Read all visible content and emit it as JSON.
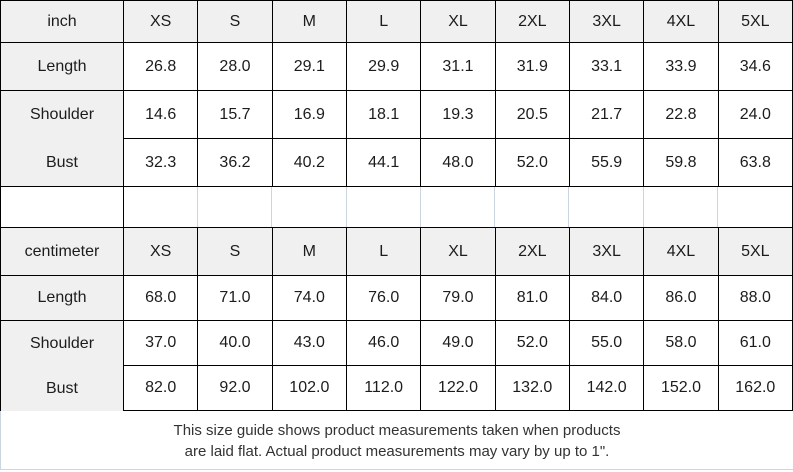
{
  "colors": {
    "header_fill": "#f0f0f0",
    "grid_line": "#000000",
    "light_grid_line": "#ccd6e0",
    "text": "#1c1c1c"
  },
  "tables": [
    {
      "id": "inch",
      "unit_label": "inch",
      "columns": [
        "XS",
        "S",
        "M",
        "L",
        "XL",
        "2XL",
        "3XL",
        "4XL",
        "5XL"
      ],
      "rows": [
        {
          "label": "Length",
          "values": [
            "26.8",
            "28.0",
            "29.1",
            "29.9",
            "31.1",
            "31.9",
            "33.1",
            "33.9",
            "34.6"
          ]
        },
        {
          "label": "Shoulder",
          "values": [
            "14.6",
            "15.7",
            "16.9",
            "18.1",
            "19.3",
            "20.5",
            "21.7",
            "22.8",
            "24.0"
          ]
        },
        {
          "label": "Bust",
          "values": [
            "32.3",
            "36.2",
            "40.2",
            "44.1",
            "48.0",
            "52.0",
            "55.9",
            "59.8",
            "63.8"
          ]
        }
      ]
    },
    {
      "id": "cm",
      "unit_label": "centimeter",
      "columns": [
        "XS",
        "S",
        "M",
        "L",
        "XL",
        "2XL",
        "3XL",
        "4XL",
        "5XL"
      ],
      "rows": [
        {
          "label": "Length",
          "values": [
            "68.0",
            "71.0",
            "74.0",
            "76.0",
            "79.0",
            "81.0",
            "84.0",
            "86.0",
            "88.0"
          ]
        },
        {
          "label": "Shoulder",
          "values": [
            "37.0",
            "40.0",
            "43.0",
            "46.0",
            "49.0",
            "52.0",
            "55.0",
            "58.0",
            "61.0"
          ]
        },
        {
          "label": "Bust",
          "values": [
            "82.0",
            "92.0",
            "102.0",
            "112.0",
            "122.0",
            "132.0",
            "142.0",
            "152.0",
            "162.0"
          ]
        }
      ]
    }
  ],
  "footer": {
    "line1": "This size guide shows product measurements taken when products",
    "line2": "are laid flat. Actual product measurements may vary by up to 1\"."
  }
}
